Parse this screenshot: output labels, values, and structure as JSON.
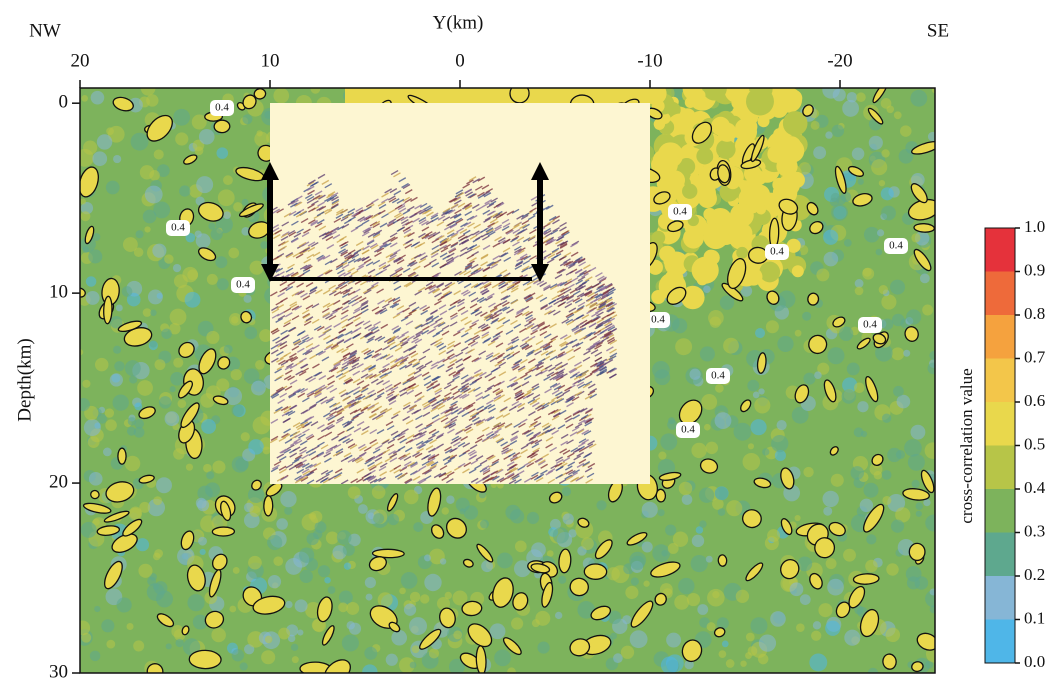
{
  "chart_data": {
    "type": "heatmap",
    "title": "Y(km)",
    "corner_labels": {
      "left": "NW",
      "right": "SE"
    },
    "y_label": "Depth(km)",
    "xlim": [
      20,
      -25
    ],
    "xticks": [
      20,
      10,
      0,
      -10,
      -20
    ],
    "ylim": [
      -0.8,
      30
    ],
    "yticks": [
      0,
      10,
      20,
      30
    ],
    "colorbar": {
      "label": "cross-correlation value",
      "lim": [
        0,
        1
      ],
      "ticks": [
        {
          "value": 0,
          "label": "0.0"
        },
        {
          "value": 0.1,
          "label": "0.1"
        },
        {
          "value": 0.2,
          "label": "0.2"
        },
        {
          "value": 0.3,
          "label": "0.3"
        },
        {
          "value": 0.4,
          "label": "0.4"
        },
        {
          "value": 0.5,
          "label": "0.5"
        },
        {
          "value": 0.6,
          "label": "0.6"
        },
        {
          "value": 0.7,
          "label": "0.7"
        },
        {
          "value": 0.8,
          "label": "0.8"
        },
        {
          "value": 0.9,
          "label": "0.9"
        },
        {
          "value": 1,
          "label": "1.0"
        }
      ],
      "colors": [
        "#4fb6e8",
        "#86b6d6",
        "#5ea88e",
        "#7db35c",
        "#b7c548",
        "#e9d84c",
        "#f3c64a",
        "#f5a23e",
        "#ee6a3a",
        "#e5323b"
      ]
    },
    "contour_labels": [
      "0.4",
      "0.4",
      "0.4",
      "0.4",
      "0.4",
      "0.4",
      "0.4",
      "0.4",
      "0.4",
      "0.4"
    ]
  }
}
